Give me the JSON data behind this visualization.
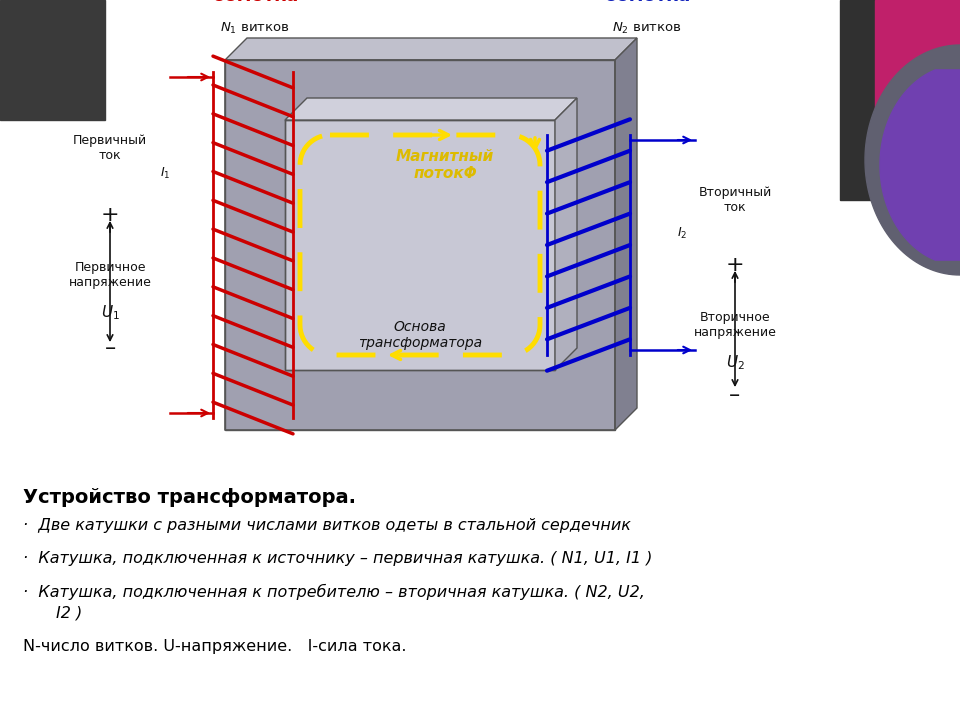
{
  "bg_color": "#ffffff",
  "title": "Устройство трансформатора.",
  "bullet1": "Две катушки с разными числами витков одеты в стальной сердечник",
  "bullet2": "Катушка, подключенная к источнику – первичная катушка. ( N1, U1, I1 )",
  "bullet3a": "Катушка, подключенная к потребителю – вторичная катушка. ( N2, U2,",
  "bullet3b": "I2 )",
  "footer": "N-число витков. U-напряжение.   I-сила тока.",
  "core_face_color": "#a0a0b0",
  "core_top_color": "#c0c0cc",
  "core_right_color": "#808090",
  "hole_color": "#c8c8d5",
  "primary_color": "#cc0000",
  "secondary_color": "#0000cc",
  "flux_color": "#ffdd00",
  "primary_label_color": "#cc0000",
  "secondary_label_color": "#1122bb",
  "corner_tl_color": "#3a3a3a",
  "corner_tr_magenta": "#c0206a",
  "corner_tr_dark": "#303030",
  "corner_tr_purple": "#7040b0",
  "corner_tr_gray": "#606070"
}
